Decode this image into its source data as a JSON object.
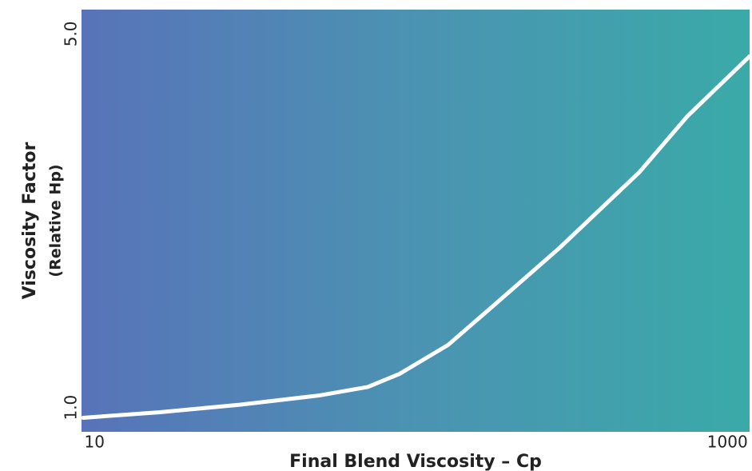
{
  "chart_data": {
    "type": "line",
    "xlabel": "Final Blend Viscosity – Cp",
    "ylabel": "Viscosity Factor",
    "ylabel_sub": "(Relative Hp)",
    "xscale": "log",
    "x": [
      9.2,
      16.1,
      28.8,
      51.5,
      73,
      92,
      131,
      185,
      295,
      527,
      748,
      1175
    ],
    "series": [
      {
        "color": "#ffffff",
        "values": [
          0.89,
          0.95,
          1.03,
          1.13,
          1.22,
          1.36,
          1.67,
          2.11,
          2.71,
          3.52,
          4.12,
          4.76
        ]
      }
    ],
    "xlim": [
      9.1,
      1175
    ],
    "xticks": [
      10,
      1000
    ],
    "ylim": [
      0.74,
      5.26
    ],
    "yticks": [
      {
        "value": 1,
        "label": "1.0"
      },
      {
        "value": 5,
        "label": "5.0"
      }
    ]
  }
}
